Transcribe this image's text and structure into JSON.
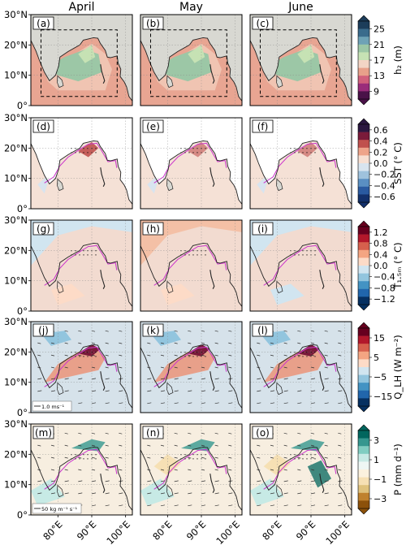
{
  "columns": [
    "April",
    "May",
    "June"
  ],
  "panel_labels": [
    [
      "(a)",
      "(b)",
      "(c)"
    ],
    [
      "(d)",
      "(e)",
      "(f)"
    ],
    [
      "(g)",
      "(h)",
      "(i)"
    ],
    [
      "(j)",
      "(k)",
      "(l)"
    ],
    [
      "(m)",
      "(n)",
      "(o)"
    ]
  ],
  "lat_ticks": [
    "0°",
    "10°N",
    "20°N",
    "30°N"
  ],
  "lon_ticks": [
    "80°E",
    "90°E",
    "100°E"
  ],
  "reference_vectors": {
    "row4": "1.0 ms⁻¹",
    "row5": "50 kg m⁻¹ s⁻¹"
  },
  "colors": {
    "land": "#d8d8d2",
    "coast": "#222222",
    "contour": "#cc33cc",
    "frame": "#000000"
  },
  "chart_data": [
    {
      "type": "heatmap",
      "variable_label": "h₂ (m)",
      "colorbar_ticks": [
        "25",
        "21",
        "17",
        "13",
        "9"
      ],
      "colorbar_colors": [
        "#1c3d5a",
        "#3a6b8c",
        "#6ea2b6",
        "#9cc7a6",
        "#c6e2b4",
        "#f3d5c5",
        "#e8a08a",
        "#d1607c",
        "#9a2c7a",
        "#4a1248"
      ],
      "range": [
        9,
        25
      ],
      "extend": "both"
    },
    {
      "type": "heatmap",
      "variable_label": "SST (° C)",
      "colorbar_ticks": [
        "0.6",
        "0.4",
        "0.2",
        "0.0",
        "−0.2",
        "−0.4",
        "−0.6"
      ],
      "colorbar_colors": [
        "#2b1740",
        "#7a1b3a",
        "#c0504d",
        "#eea48a",
        "#f7dfd2",
        "#d8e4ef",
        "#9fc2dd",
        "#5a8fc2",
        "#2a5aa0",
        "#13306b"
      ],
      "range": [
        -0.6,
        0.6
      ],
      "extend": "both"
    },
    {
      "type": "heatmap",
      "variable_label": "T₁.₅ₘ (° C)",
      "colorbar_ticks": [
        "1.2",
        "0.8",
        "0.4",
        "0.0",
        "−0.4",
        "−0.8",
        "−1.2"
      ],
      "colorbar_colors": [
        "#67001f",
        "#b2182b",
        "#d6604d",
        "#f4a582",
        "#fddbc7",
        "#d1e5f0",
        "#92c5de",
        "#4393c3",
        "#2166ac",
        "#053061"
      ],
      "range": [
        -1.2,
        1.2
      ],
      "extend": "both"
    },
    {
      "type": "heatmap",
      "variable_label": "Q_LH (W m⁻²)",
      "colorbar_ticks": [
        "15",
        "5",
        "−5",
        "−15"
      ],
      "colorbar_colors": [
        "#67001f",
        "#b2182b",
        "#d6604d",
        "#f4a582",
        "#fddbc7",
        "#d1e5f0",
        "#92c5de",
        "#4393c3",
        "#2166ac",
        "#053061"
      ],
      "range": [
        -20,
        20
      ],
      "extend": "both"
    },
    {
      "type": "heatmap",
      "variable_label": "P (mm d⁻¹)",
      "colorbar_ticks": [
        "3",
        "1",
        "−1",
        "−3"
      ],
      "colorbar_colors": [
        "#01665e",
        "#35978f",
        "#80cdc1",
        "#c7eae5",
        "#eef7f4",
        "#fbf1de",
        "#f6e0b4",
        "#dfc27d",
        "#bf812d",
        "#8c510a"
      ],
      "range": [
        -4,
        4
      ],
      "extend": "both"
    }
  ]
}
